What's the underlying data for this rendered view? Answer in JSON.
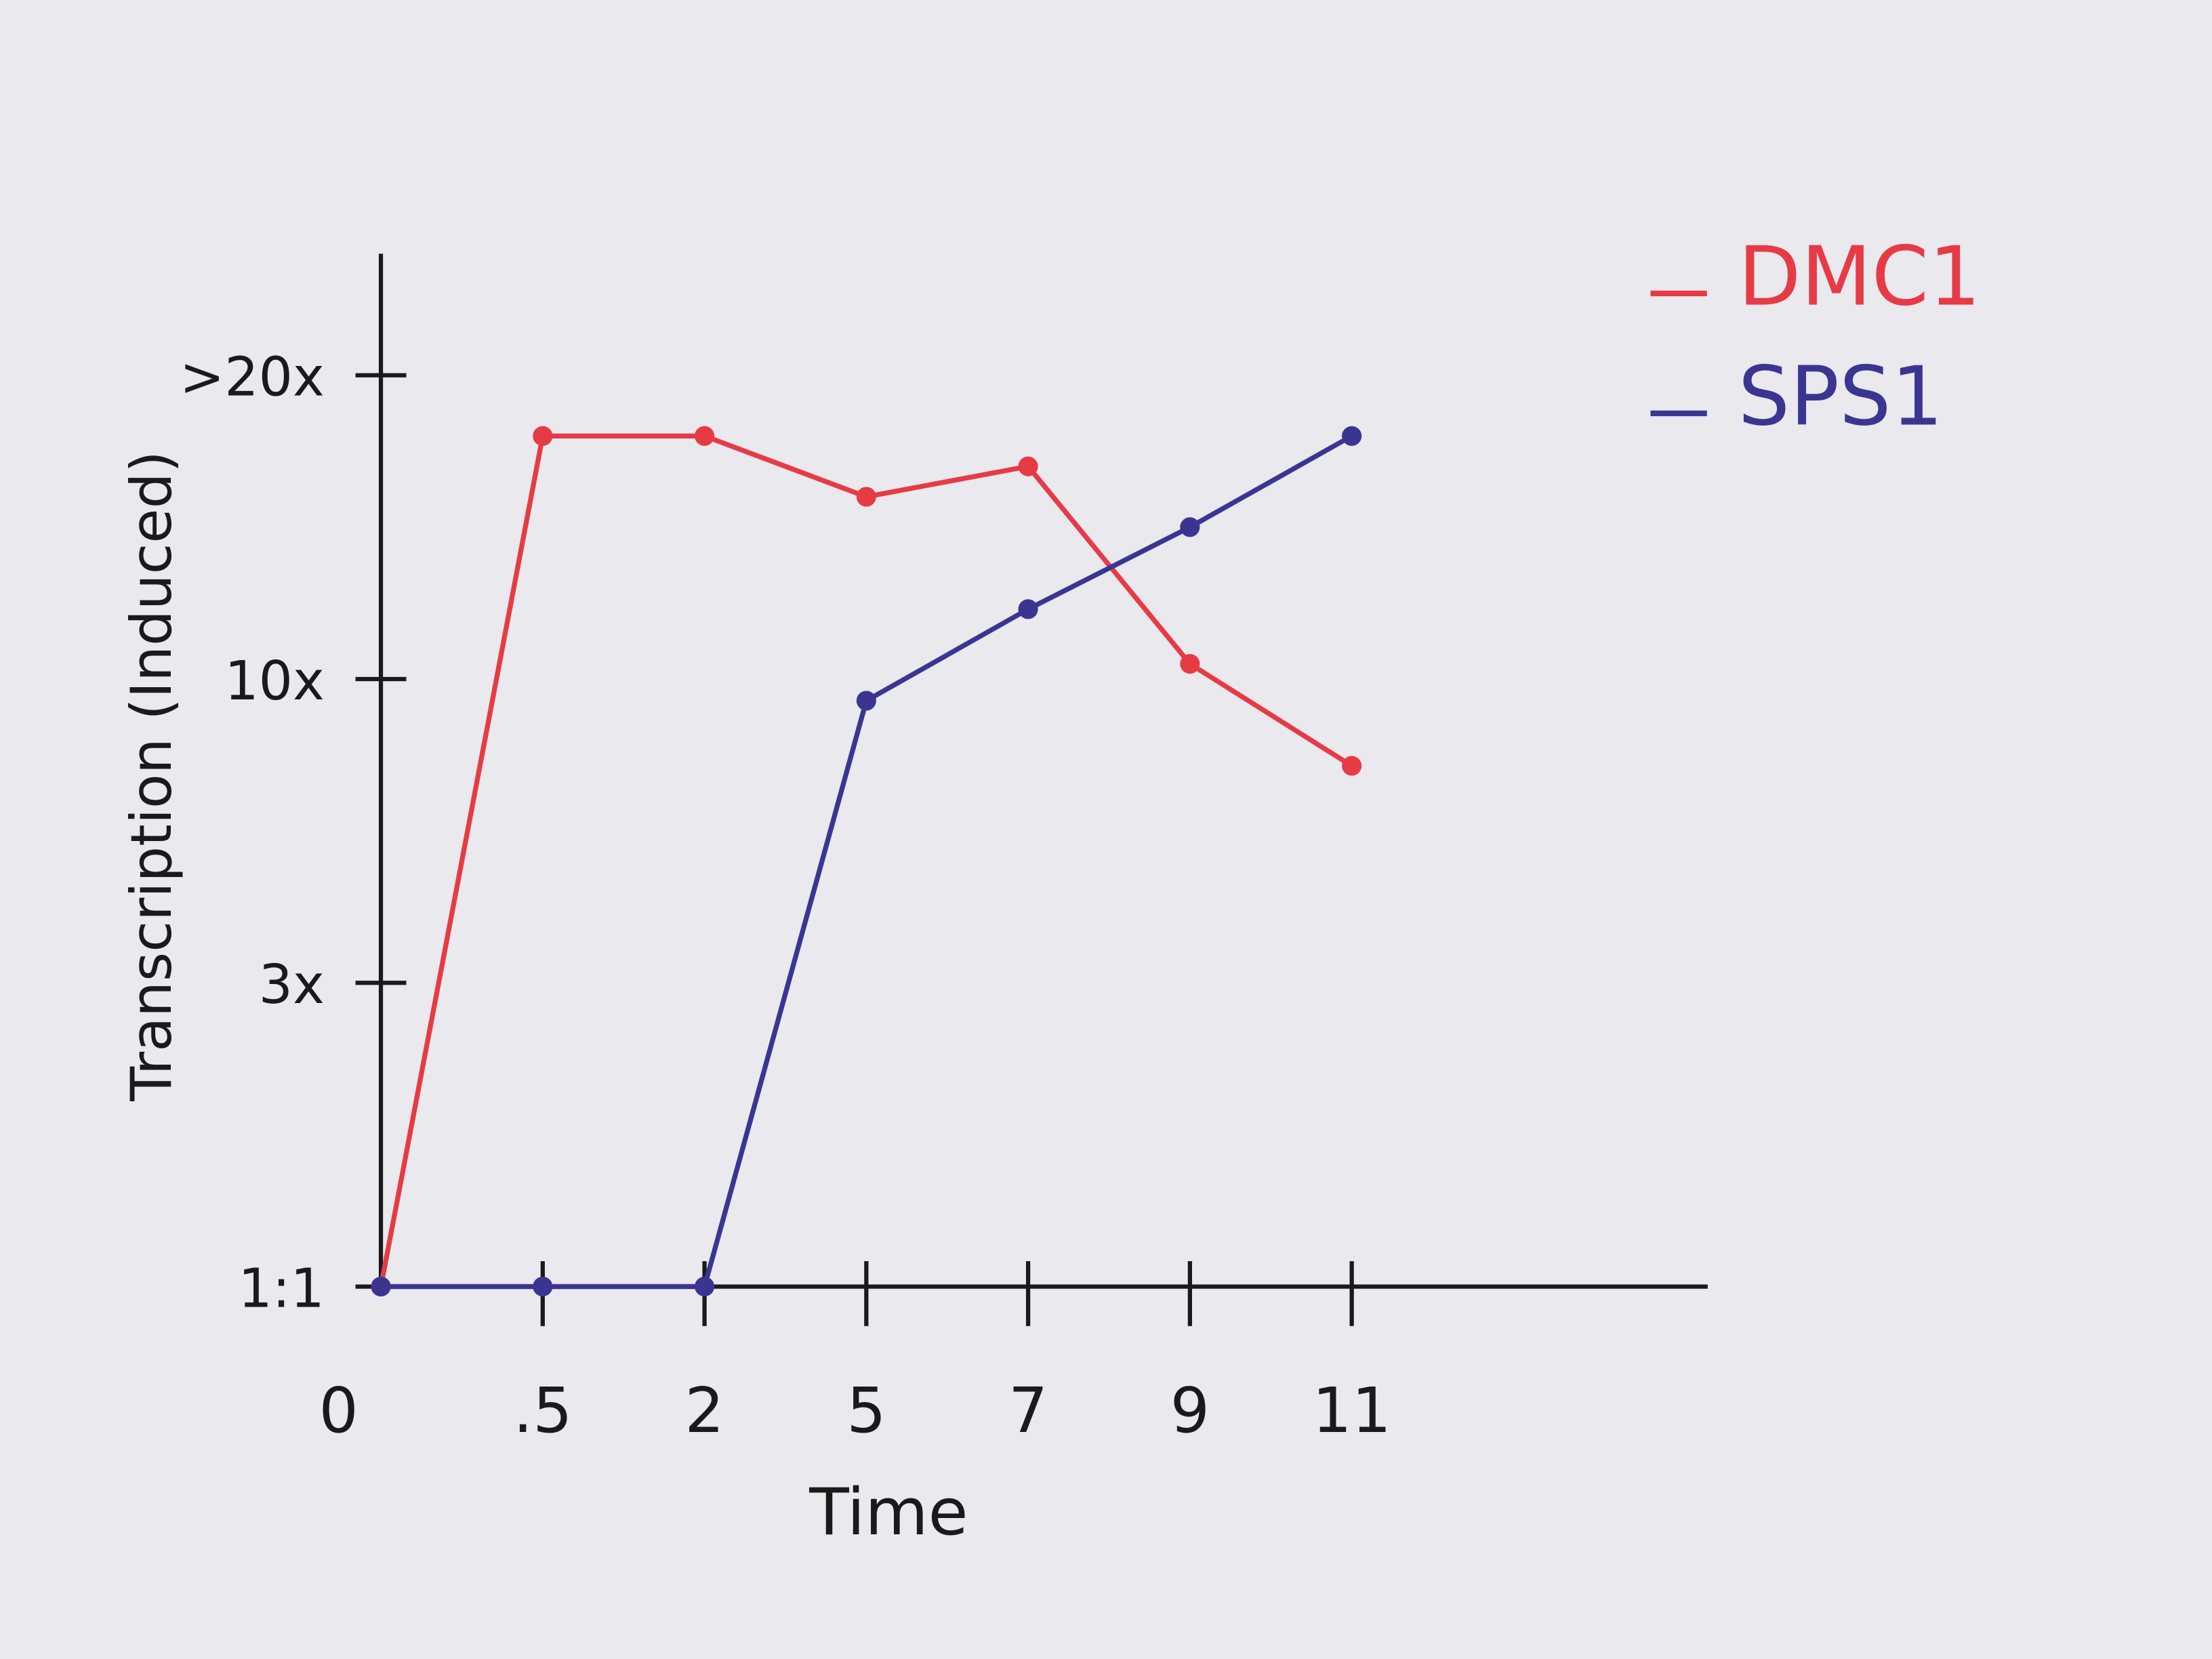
{
  "chart_data": {
    "type": "line",
    "x_label": "Time",
    "y_label": "Transcription (Induced)",
    "categories": [
      "0",
      ".5",
      "2",
      "5",
      "7",
      "9",
      "11"
    ],
    "series": [
      {
        "name": "DMC1",
        "color": "#e63b45",
        "values": [
          1,
          18,
          18,
          16,
          17,
          10.5,
          8
        ]
      },
      {
        "name": "SPS1",
        "color": "#3b3592",
        "values": [
          1,
          1,
          1,
          9.5,
          12.3,
          15,
          18
        ]
      }
    ],
    "ylim": [
      1,
      24
    ],
    "yticks": [
      {
        "value": 1,
        "label": "1:1"
      },
      {
        "value": 3,
        "label": "3x"
      },
      {
        "value": 10,
        "label": "10x"
      },
      {
        "value": 20,
        "label": ">20x"
      }
    ],
    "legend": "upper right",
    "markers": true
  }
}
